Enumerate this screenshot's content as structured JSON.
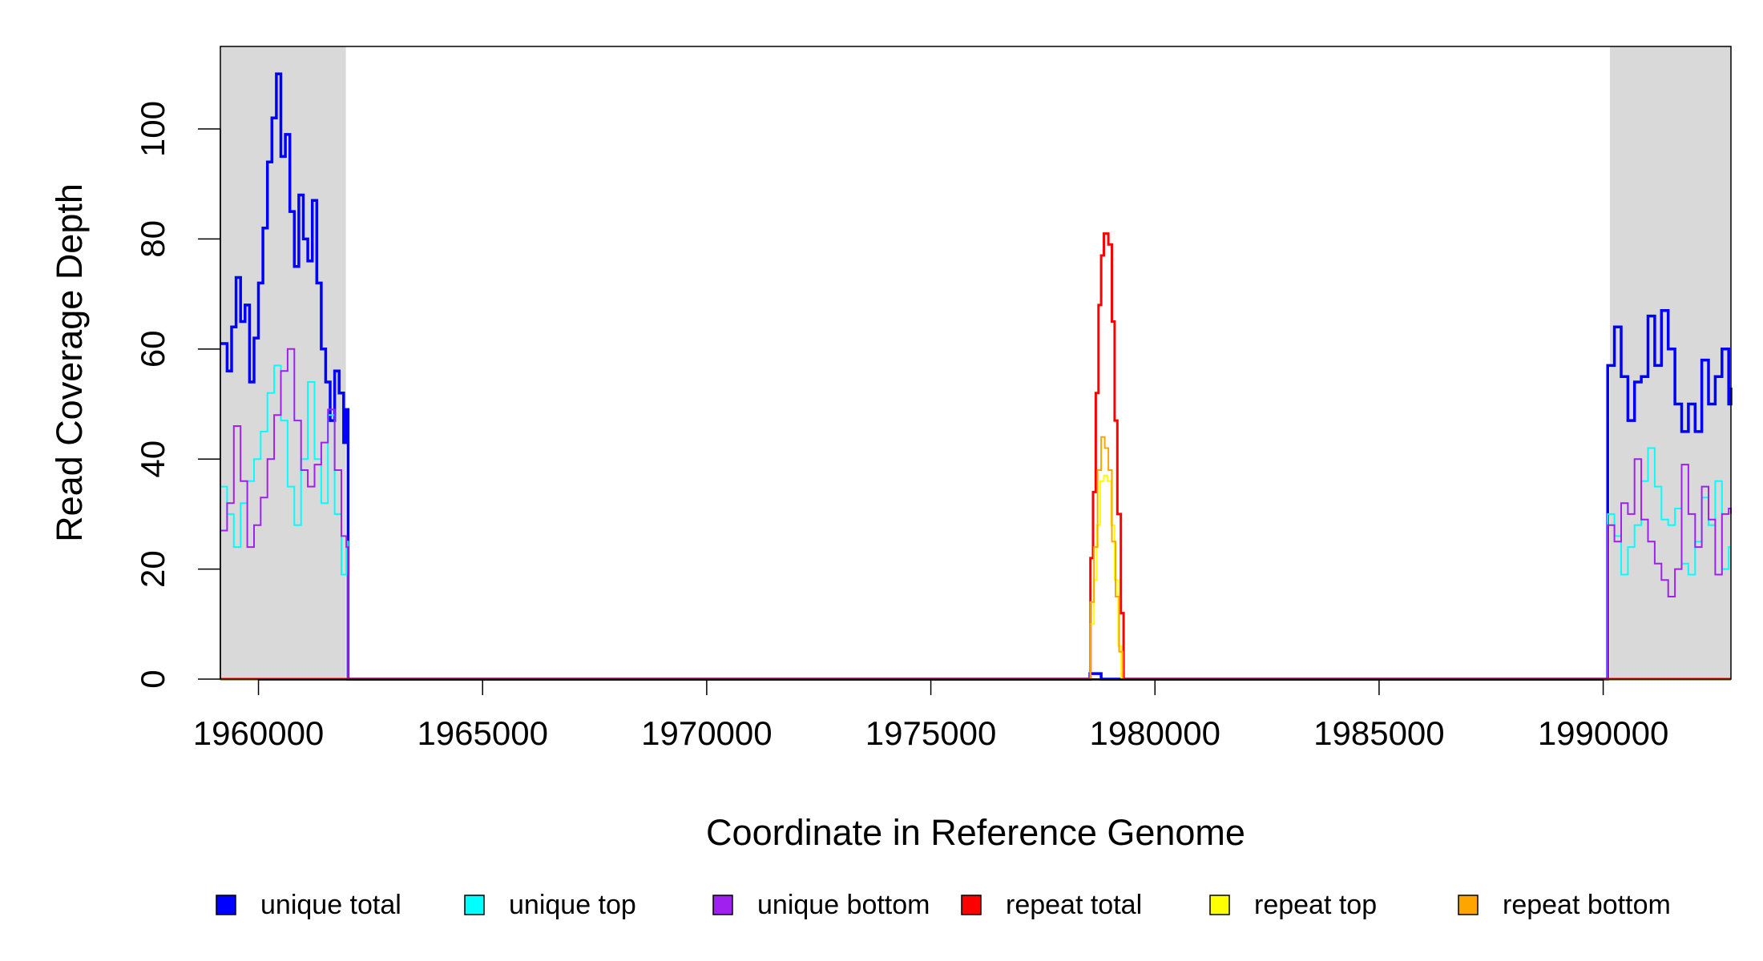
{
  "chart_data": {
    "type": "line",
    "title": "",
    "xlabel": "Coordinate in Reference Genome",
    "ylabel": "Read Coverage Depth",
    "xlim": [
      1959150,
      1992850
    ],
    "ylim": [
      0,
      115
    ],
    "x_ticks": [
      1960000,
      1965000,
      1970000,
      1975000,
      1980000,
      1985000,
      1990000
    ],
    "y_ticks": [
      0,
      20,
      40,
      60,
      80,
      100
    ],
    "grid": false,
    "legend_position": "bottom",
    "shaded_regions": [
      {
        "x_start": 1959150,
        "x_end": 1961950,
        "color": "#d9d9d9"
      },
      {
        "x_start": 1990150,
        "x_end": 1992850,
        "color": "#d9d9d9"
      }
    ],
    "series": [
      {
        "name": "unique total",
        "color": "#0000ff",
        "step": true,
        "points": [
          [
            1959150,
            61
          ],
          [
            1959300,
            56
          ],
          [
            1959400,
            64
          ],
          [
            1959500,
            73
          ],
          [
            1959600,
            65
          ],
          [
            1959700,
            68
          ],
          [
            1959800,
            54
          ],
          [
            1959900,
            62
          ],
          [
            1960000,
            72
          ],
          [
            1960100,
            82
          ],
          [
            1960200,
            94
          ],
          [
            1960300,
            102
          ],
          [
            1960400,
            110
          ],
          [
            1960500,
            95
          ],
          [
            1960600,
            99
          ],
          [
            1960700,
            85
          ],
          [
            1960800,
            75
          ],
          [
            1960900,
            88
          ],
          [
            1961000,
            80
          ],
          [
            1961100,
            76
          ],
          [
            1961200,
            87
          ],
          [
            1961300,
            72
          ],
          [
            1961400,
            60
          ],
          [
            1961500,
            54
          ],
          [
            1961600,
            47
          ],
          [
            1961700,
            56
          ],
          [
            1961800,
            52
          ],
          [
            1961900,
            43
          ],
          [
            1961960,
            49
          ],
          [
            1962000,
            0
          ],
          [
            1978550,
            1
          ],
          [
            1978800,
            0
          ],
          [
            1990100,
            57
          ],
          [
            1990250,
            64
          ],
          [
            1990400,
            55
          ],
          [
            1990550,
            47
          ],
          [
            1990700,
            54
          ],
          [
            1990850,
            55
          ],
          [
            1991000,
            66
          ],
          [
            1991150,
            57
          ],
          [
            1991300,
            67
          ],
          [
            1991450,
            60
          ],
          [
            1991600,
            50
          ],
          [
            1991750,
            45
          ],
          [
            1991900,
            50
          ],
          [
            1992050,
            45
          ],
          [
            1992200,
            58
          ],
          [
            1992350,
            50
          ],
          [
            1992500,
            55
          ],
          [
            1992650,
            60
          ],
          [
            1992800,
            50
          ],
          [
            1992850,
            53
          ]
        ]
      },
      {
        "name": "unique top",
        "color": "#00ffff",
        "step": true,
        "points": [
          [
            1959150,
            35
          ],
          [
            1959300,
            30
          ],
          [
            1959450,
            24
          ],
          [
            1959600,
            32
          ],
          [
            1959750,
            36
          ],
          [
            1959900,
            40
          ],
          [
            1960050,
            45
          ],
          [
            1960200,
            52
          ],
          [
            1960350,
            57
          ],
          [
            1960500,
            47
          ],
          [
            1960650,
            35
          ],
          [
            1960800,
            28
          ],
          [
            1960950,
            40
          ],
          [
            1961100,
            54
          ],
          [
            1961250,
            40
          ],
          [
            1961400,
            32
          ],
          [
            1961550,
            48
          ],
          [
            1961700,
            30
          ],
          [
            1961850,
            19
          ],
          [
            1961960,
            25
          ],
          [
            1962000,
            0
          ],
          [
            1990100,
            30
          ],
          [
            1990250,
            26
          ],
          [
            1990400,
            19
          ],
          [
            1990550,
            24
          ],
          [
            1990700,
            28
          ],
          [
            1990850,
            36
          ],
          [
            1991000,
            42
          ],
          [
            1991150,
            35
          ],
          [
            1991300,
            29
          ],
          [
            1991450,
            28
          ],
          [
            1991600,
            31
          ],
          [
            1991750,
            21
          ],
          [
            1991900,
            19
          ],
          [
            1992050,
            25
          ],
          [
            1992200,
            33
          ],
          [
            1992350,
            28
          ],
          [
            1992500,
            36
          ],
          [
            1992650,
            20
          ],
          [
            1992800,
            24
          ],
          [
            1992850,
            24
          ]
        ]
      },
      {
        "name": "unique bottom",
        "color": "#a020f0",
        "step": true,
        "points": [
          [
            1959150,
            27
          ],
          [
            1959300,
            32
          ],
          [
            1959450,
            46
          ],
          [
            1959600,
            36
          ],
          [
            1959750,
            24
          ],
          [
            1959900,
            28
          ],
          [
            1960050,
            33
          ],
          [
            1960200,
            40
          ],
          [
            1960350,
            48
          ],
          [
            1960500,
            56
          ],
          [
            1960650,
            60
          ],
          [
            1960800,
            47
          ],
          [
            1960950,
            38
          ],
          [
            1961100,
            35
          ],
          [
            1961250,
            39
          ],
          [
            1961400,
            43
          ],
          [
            1961550,
            49
          ],
          [
            1961700,
            38
          ],
          [
            1961850,
            26
          ],
          [
            1961960,
            24
          ],
          [
            1962000,
            0
          ],
          [
            1990100,
            28
          ],
          [
            1990250,
            25
          ],
          [
            1990400,
            32
          ],
          [
            1990550,
            30
          ],
          [
            1990700,
            40
          ],
          [
            1990850,
            29
          ],
          [
            1991000,
            25
          ],
          [
            1991150,
            21
          ],
          [
            1991300,
            18
          ],
          [
            1991450,
            15
          ],
          [
            1991600,
            20
          ],
          [
            1991750,
            39
          ],
          [
            1991900,
            30
          ],
          [
            1992050,
            24
          ],
          [
            1992200,
            35
          ],
          [
            1992350,
            29
          ],
          [
            1992500,
            19
          ],
          [
            1992650,
            30
          ],
          [
            1992800,
            31
          ],
          [
            1992850,
            30
          ]
        ]
      },
      {
        "name": "repeat total",
        "color": "#ff0000",
        "step": true,
        "points": [
          [
            1959150,
            0
          ],
          [
            1978500,
            0
          ],
          [
            1978560,
            22
          ],
          [
            1978620,
            34
          ],
          [
            1978680,
            52
          ],
          [
            1978740,
            68
          ],
          [
            1978800,
            77
          ],
          [
            1978860,
            81
          ],
          [
            1978960,
            79
          ],
          [
            1979040,
            65
          ],
          [
            1979100,
            47
          ],
          [
            1979160,
            30
          ],
          [
            1979240,
            12
          ],
          [
            1979300,
            0
          ],
          [
            1992850,
            0
          ]
        ]
      },
      {
        "name": "repeat top",
        "color": "#ffff00",
        "step": true,
        "points": [
          [
            1959150,
            0
          ],
          [
            1978500,
            0
          ],
          [
            1978560,
            10
          ],
          [
            1978640,
            18
          ],
          [
            1978700,
            28
          ],
          [
            1978780,
            36
          ],
          [
            1978860,
            37
          ],
          [
            1978940,
            36
          ],
          [
            1979020,
            28
          ],
          [
            1979100,
            18
          ],
          [
            1979180,
            6
          ],
          [
            1979250,
            0
          ],
          [
            1992850,
            0
          ]
        ]
      },
      {
        "name": "repeat bottom",
        "color": "#ffa500",
        "step": true,
        "points": [
          [
            1959150,
            0
          ],
          [
            1978500,
            0
          ],
          [
            1978560,
            14
          ],
          [
            1978640,
            24
          ],
          [
            1978720,
            38
          ],
          [
            1978800,
            44
          ],
          [
            1978880,
            42
          ],
          [
            1978960,
            38
          ],
          [
            1979040,
            25
          ],
          [
            1979120,
            15
          ],
          [
            1979200,
            5
          ],
          [
            1979280,
            0
          ],
          [
            1992850,
            0
          ]
        ]
      }
    ]
  }
}
